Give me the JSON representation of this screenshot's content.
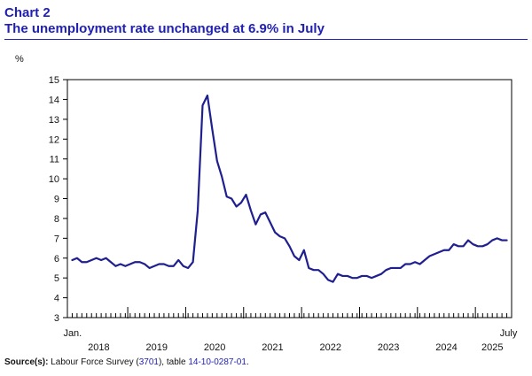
{
  "header": {
    "chart_number": "Chart 2",
    "title": "The unemployment rate unchanged at 6.9% in July"
  },
  "colors": {
    "title": "#1f1fb4",
    "line": "#1f1f8f",
    "axis": "#000000",
    "link": "#1f1fb4"
  },
  "source": {
    "label": "Source(s):",
    "text_1": " Labour Force Survey (",
    "link_1": "3701",
    "text_2": "), table ",
    "link_2": "14-10-0287-01",
    "text_3": "."
  },
  "chart_data": {
    "type": "line",
    "title": "The unemployment rate unchanged at 6.9% in July",
    "ylabel": "%",
    "xlabel": "",
    "ylim": [
      3,
      15
    ],
    "yticks": [
      3,
      4,
      5,
      6,
      7,
      8,
      9,
      10,
      11,
      12,
      13,
      14,
      15
    ],
    "grid": false,
    "start_label": "Jan.",
    "end_label": "July",
    "year_labels": [
      "2018",
      "2019",
      "2020",
      "2021",
      "2022",
      "2023",
      "2024",
      "2025"
    ],
    "series": [
      {
        "name": "Unemployment rate",
        "start": "2018-01",
        "end": "2025-07",
        "values": [
          5.9,
          6.0,
          5.8,
          5.8,
          5.9,
          6.0,
          5.9,
          6.0,
          5.8,
          5.6,
          5.7,
          5.6,
          5.7,
          5.8,
          5.8,
          5.7,
          5.5,
          5.6,
          5.7,
          5.7,
          5.6,
          5.6,
          5.9,
          5.6,
          5.5,
          5.8,
          8.4,
          13.7,
          14.2,
          12.5,
          10.9,
          10.1,
          9.1,
          9.0,
          8.6,
          8.8,
          9.2,
          8.4,
          7.7,
          8.2,
          8.3,
          7.8,
          7.3,
          7.1,
          7.0,
          6.6,
          6.1,
          5.9,
          6.4,
          5.5,
          5.4,
          5.4,
          5.2,
          4.9,
          4.8,
          5.2,
          5.1,
          5.1,
          5.0,
          5.0,
          5.1,
          5.1,
          5.0,
          5.1,
          5.2,
          5.4,
          5.5,
          5.5,
          5.5,
          5.7,
          5.7,
          5.8,
          5.7,
          5.9,
          6.1,
          6.2,
          6.3,
          6.4,
          6.4,
          6.7,
          6.6,
          6.6,
          6.9,
          6.7,
          6.6,
          6.6,
          6.7,
          6.9,
          7.0,
          6.9,
          6.9
        ]
      }
    ]
  }
}
